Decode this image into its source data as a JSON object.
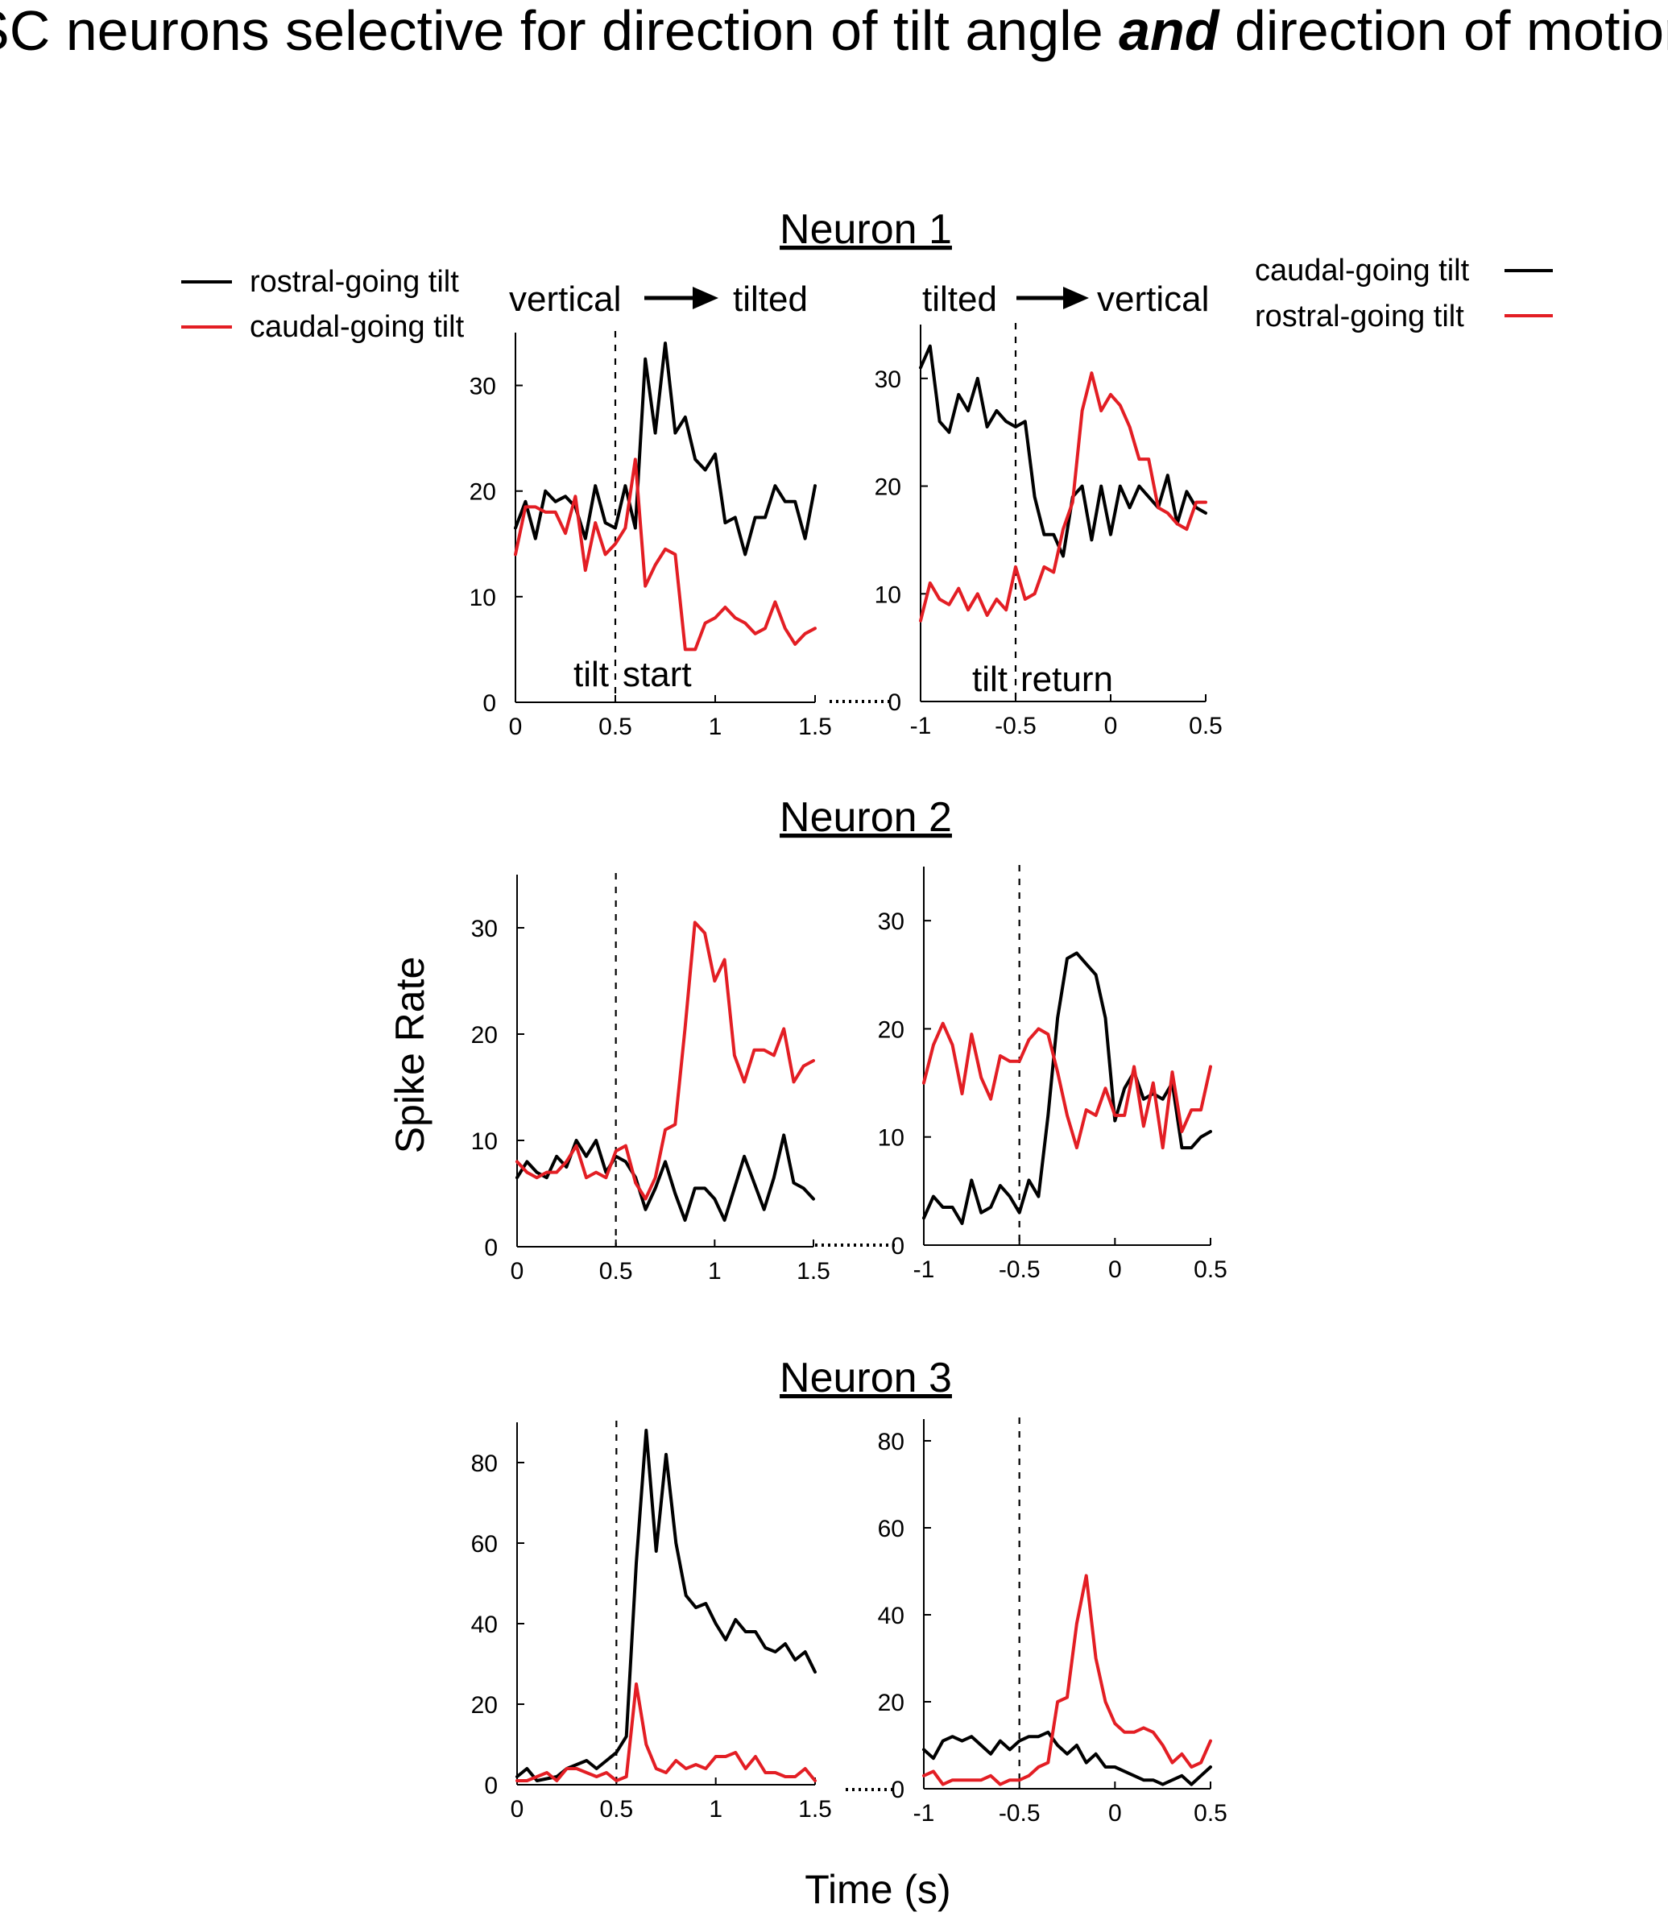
{
  "title": {
    "part1": "SC neurons selective for direction of tilt angle ",
    "emphasis": "and",
    "part2": " direction of motion"
  },
  "annotations": {
    "onset_from": "vertical",
    "onset_to": "tilted",
    "offset_from": "tilted",
    "offset_to": "vertical",
    "tilt_start_1": "tilt",
    "tilt_start_2": "start",
    "tilt_return_1": "tilt",
    "tilt_return_2": "return"
  },
  "legend_left": {
    "items": [
      {
        "label": "rostral-going tilt",
        "color": "#000000"
      },
      {
        "label": "caudal-going tilt",
        "color": "#e31e24"
      }
    ]
  },
  "legend_right": {
    "items": [
      {
        "label": "caudal-going tilt",
        "color": "#000000"
      },
      {
        "label": "rostral-going tilt",
        "color": "#e31e24"
      }
    ]
  },
  "ylabel": "Spike Rate",
  "xlabel": "Time (s)",
  "chart_data": [
    {
      "type": "line",
      "title": "Neuron 1",
      "panel": "left",
      "series_note": "black = rostral-going tilt, red = caudal-going tilt",
      "xlim": [
        0,
        1.5
      ],
      "ylim": [
        0,
        35
      ],
      "xticks": [
        0,
        0.5,
        1,
        1.5
      ],
      "yticks": [
        0,
        10,
        20,
        30
      ],
      "xtick_labels": [
        "0",
        "0.5",
        "1",
        "1.5"
      ],
      "ytick_labels": [
        "0",
        "10",
        "20",
        "30"
      ],
      "vline": 0.5,
      "series": [
        {
          "color": "#000000",
          "x": [
            0,
            0.05,
            0.1,
            0.15,
            0.2,
            0.25,
            0.3,
            0.35,
            0.4,
            0.45,
            0.5,
            0.55,
            0.6,
            0.65,
            0.7,
            0.75,
            0.8,
            0.85,
            0.9,
            0.95,
            1.0,
            1.05,
            1.1,
            1.15,
            1.2,
            1.25,
            1.3,
            1.35,
            1.4,
            1.45,
            1.5
          ],
          "y": [
            16.5,
            19,
            15.5,
            20,
            19,
            19.5,
            18.5,
            15.5,
            20.5,
            17,
            16.5,
            20.5,
            16.5,
            32.5,
            25.5,
            34,
            25.5,
            27,
            23,
            22,
            23.5,
            17,
            17.5,
            14,
            17.5,
            17.5,
            20.5,
            19,
            19,
            15.5,
            20.5
          ]
        },
        {
          "color": "#e31e24",
          "x": [
            0,
            0.05,
            0.1,
            0.15,
            0.2,
            0.25,
            0.3,
            0.35,
            0.4,
            0.45,
            0.5,
            0.55,
            0.6,
            0.65,
            0.7,
            0.75,
            0.8,
            0.85,
            0.9,
            0.95,
            1.0,
            1.05,
            1.1,
            1.15,
            1.2,
            1.25,
            1.3,
            1.35,
            1.4,
            1.45,
            1.5
          ],
          "y": [
            14,
            18.5,
            18.5,
            18,
            18,
            16,
            19.5,
            12.5,
            17,
            14,
            15,
            16.5,
            23,
            11,
            13,
            14.5,
            14,
            5,
            5,
            7.5,
            8,
            9,
            8,
            7.5,
            6.5,
            7,
            9.5,
            7,
            5.5,
            6.5,
            7
          ]
        }
      ]
    },
    {
      "type": "line",
      "title": "",
      "panel": "right",
      "series_note": "black = caudal-going tilt, red = rostral-going tilt",
      "xlim": [
        -1,
        0.5
      ],
      "ylim": [
        0,
        35
      ],
      "xticks": [
        -1,
        -0.5,
        0,
        0.5
      ],
      "yticks": [
        0,
        10,
        20,
        30
      ],
      "xtick_labels": [
        "-1",
        "-0.5",
        "0",
        "0.5"
      ],
      "ytick_labels": [
        "0",
        "10",
        "20",
        "30"
      ],
      "vline": -0.5,
      "series": [
        {
          "color": "#000000",
          "x": [
            -1,
            -0.95,
            -0.9,
            -0.85,
            -0.8,
            -0.75,
            -0.7,
            -0.65,
            -0.6,
            -0.55,
            -0.5,
            -0.45,
            -0.4,
            -0.35,
            -0.3,
            -0.25,
            -0.2,
            -0.15,
            -0.1,
            -0.05,
            0,
            0.05,
            0.1,
            0.15,
            0.2,
            0.25,
            0.3,
            0.35,
            0.4,
            0.45,
            0.5
          ],
          "y": [
            31,
            33,
            26,
            25,
            28.5,
            27,
            30,
            25.5,
            27,
            26,
            25.5,
            26,
            19,
            15.5,
            15.5,
            13.5,
            19,
            20,
            15,
            20,
            15.5,
            20,
            18,
            20,
            19,
            18,
            21,
            16.5,
            19.5,
            18,
            17.5
          ]
        },
        {
          "color": "#e31e24",
          "x": [
            -1,
            -0.95,
            -0.9,
            -0.85,
            -0.8,
            -0.75,
            -0.7,
            -0.65,
            -0.6,
            -0.55,
            -0.5,
            -0.45,
            -0.4,
            -0.35,
            -0.3,
            -0.25,
            -0.2,
            -0.15,
            -0.1,
            -0.05,
            0,
            0.05,
            0.1,
            0.15,
            0.2,
            0.25,
            0.3,
            0.35,
            0.4,
            0.45,
            0.5
          ],
          "y": [
            7.5,
            11,
            9.5,
            9,
            10.5,
            8.5,
            10,
            8,
            9.5,
            8.5,
            12.5,
            9.5,
            10,
            12.5,
            12,
            16,
            18.5,
            27,
            30.5,
            27,
            28.5,
            27.5,
            25.5,
            22.5,
            22.5,
            18,
            17.5,
            16.5,
            16,
            18.5,
            18.5
          ]
        }
      ]
    },
    {
      "type": "line",
      "title": "Neuron 2",
      "panel": "left",
      "xlim": [
        0,
        1.5
      ],
      "ylim": [
        0,
        35
      ],
      "xticks": [
        0,
        0.5,
        1,
        1.5
      ],
      "yticks": [
        0,
        10,
        20,
        30
      ],
      "xtick_labels": [
        "0",
        "0.5",
        "1",
        "1.5"
      ],
      "ytick_labels": [
        "0",
        "10",
        "20",
        "30"
      ],
      "vline": 0.5,
      "series": [
        {
          "color": "#000000",
          "x": [
            0,
            0.05,
            0.1,
            0.15,
            0.2,
            0.25,
            0.3,
            0.35,
            0.4,
            0.45,
            0.5,
            0.55,
            0.6,
            0.65,
            0.7,
            0.75,
            0.8,
            0.85,
            0.9,
            0.95,
            1.0,
            1.05,
            1.1,
            1.15,
            1.2,
            1.25,
            1.3,
            1.35,
            1.4,
            1.45,
            1.5
          ],
          "y": [
            6.5,
            8,
            7,
            6.5,
            8.5,
            7.5,
            10,
            8.5,
            10,
            7,
            8.5,
            8,
            6.5,
            3.5,
            5.5,
            8,
            5,
            2.5,
            5.5,
            5.5,
            4.5,
            2.5,
            5.5,
            8.5,
            6,
            3.5,
            6.5,
            10.5,
            6,
            5.5,
            4.5
          ]
        },
        {
          "color": "#e31e24",
          "x": [
            0,
            0.05,
            0.1,
            0.15,
            0.2,
            0.25,
            0.3,
            0.35,
            0.4,
            0.45,
            0.5,
            0.55,
            0.6,
            0.65,
            0.7,
            0.75,
            0.8,
            0.85,
            0.9,
            0.95,
            1.0,
            1.05,
            1.1,
            1.15,
            1.2,
            1.25,
            1.3,
            1.35,
            1.4,
            1.45,
            1.5
          ],
          "y": [
            8,
            7,
            6.5,
            7,
            7,
            8,
            9.5,
            6.5,
            7,
            6.5,
            9,
            9.5,
            6,
            4.5,
            6.5,
            11,
            11.5,
            20.5,
            30.5,
            29.5,
            25,
            27,
            18,
            15.5,
            18.5,
            18.5,
            18,
            20.5,
            15.5,
            17,
            17.5
          ]
        }
      ]
    },
    {
      "type": "line",
      "title": "",
      "panel": "right",
      "xlim": [
        -1,
        0.5
      ],
      "ylim": [
        0,
        35
      ],
      "xticks": [
        -1,
        -0.5,
        0,
        0.5
      ],
      "yticks": [
        0,
        10,
        20,
        30
      ],
      "xtick_labels": [
        "-1",
        "-0.5",
        "0",
        "0.5"
      ],
      "ytick_labels": [
        "0",
        "10",
        "20",
        "30"
      ],
      "vline": -0.5,
      "series": [
        {
          "color": "#000000",
          "x": [
            -1,
            -0.95,
            -0.9,
            -0.85,
            -0.8,
            -0.75,
            -0.7,
            -0.65,
            -0.6,
            -0.55,
            -0.5,
            -0.45,
            -0.4,
            -0.35,
            -0.3,
            -0.25,
            -0.2,
            -0.15,
            -0.1,
            -0.05,
            0,
            0.05,
            0.1,
            0.15,
            0.2,
            0.25,
            0.3,
            0.35,
            0.4,
            0.45,
            0.5
          ],
          "y": [
            2.5,
            4.5,
            3.5,
            3.5,
            2,
            6,
            3,
            3.5,
            5.5,
            4.5,
            3,
            6,
            4.5,
            12,
            21,
            26.5,
            27,
            26,
            25,
            21,
            11.5,
            14.5,
            16,
            13.5,
            14,
            13.5,
            15,
            9,
            9,
            10,
            10.5
          ]
        },
        {
          "color": "#e31e24",
          "x": [
            -1,
            -0.95,
            -0.9,
            -0.85,
            -0.8,
            -0.75,
            -0.7,
            -0.65,
            -0.6,
            -0.55,
            -0.5,
            -0.45,
            -0.4,
            -0.35,
            -0.3,
            -0.25,
            -0.2,
            -0.15,
            -0.1,
            -0.05,
            0,
            0.05,
            0.1,
            0.15,
            0.2,
            0.25,
            0.3,
            0.35,
            0.4,
            0.45,
            0.5
          ],
          "y": [
            15,
            18.5,
            20.5,
            18.5,
            14,
            19.5,
            15.5,
            13.5,
            17.5,
            17,
            17,
            19,
            20,
            19.5,
            16,
            12,
            9,
            12.5,
            12,
            14.5,
            12,
            12,
            16.5,
            11,
            15,
            9,
            16,
            10.5,
            12.5,
            12.5,
            16.5
          ]
        }
      ]
    },
    {
      "type": "line",
      "title": "Neuron 3",
      "panel": "left",
      "xlim": [
        0,
        1.5
      ],
      "ylim": [
        0,
        90
      ],
      "xticks": [
        0,
        0.5,
        1,
        1.5
      ],
      "yticks": [
        0,
        20,
        40,
        60,
        80
      ],
      "xtick_labels": [
        "0",
        "0.5",
        "1",
        "1.5"
      ],
      "ytick_labels": [
        "0",
        "20",
        "40",
        "60",
        "80"
      ],
      "vline": 0.5,
      "series": [
        {
          "color": "#000000",
          "x": [
            0,
            0.05,
            0.1,
            0.15,
            0.2,
            0.25,
            0.3,
            0.35,
            0.4,
            0.45,
            0.5,
            0.55,
            0.6,
            0.65,
            0.7,
            0.75,
            0.8,
            0.85,
            0.9,
            0.95,
            1.0,
            1.05,
            1.1,
            1.15,
            1.2,
            1.25,
            1.3,
            1.35,
            1.4,
            1.45,
            1.5
          ],
          "y": [
            2,
            4,
            1,
            1.5,
            2,
            4,
            5,
            6,
            4,
            6,
            8,
            12,
            55,
            88,
            58,
            82,
            60,
            47,
            44,
            45,
            40,
            36,
            41,
            38,
            38,
            34,
            33,
            35,
            31,
            33,
            28
          ]
        },
        {
          "color": "#e31e24",
          "x": [
            0,
            0.05,
            0.1,
            0.15,
            0.2,
            0.25,
            0.3,
            0.35,
            0.4,
            0.45,
            0.5,
            0.55,
            0.6,
            0.65,
            0.7,
            0.75,
            0.8,
            0.85,
            0.9,
            0.95,
            1.0,
            1.05,
            1.1,
            1.15,
            1.2,
            1.25,
            1.3,
            1.35,
            1.4,
            1.45,
            1.5
          ],
          "y": [
            1,
            1,
            2,
            3,
            1,
            4,
            4,
            3,
            2,
            3,
            1,
            2,
            25,
            10,
            4,
            3,
            6,
            4,
            5,
            4,
            7,
            7,
            8,
            4,
            7,
            3,
            3,
            2,
            2,
            4,
            1
          ]
        }
      ]
    },
    {
      "type": "line",
      "title": "",
      "panel": "right",
      "xlim": [
        -1,
        0.5
      ],
      "ylim": [
        0,
        85
      ],
      "xticks": [
        -1,
        -0.5,
        0,
        0.5
      ],
      "yticks": [
        0,
        20,
        40,
        60,
        80
      ],
      "xtick_labels": [
        "-1",
        "-0.5",
        "0",
        "0.5"
      ],
      "ytick_labels": [
        "0",
        "20",
        "40",
        "60",
        "80"
      ],
      "vline": -0.5,
      "series": [
        {
          "color": "#000000",
          "x": [
            -1,
            -0.95,
            -0.9,
            -0.85,
            -0.8,
            -0.75,
            -0.7,
            -0.65,
            -0.6,
            -0.55,
            -0.5,
            -0.45,
            -0.4,
            -0.35,
            -0.3,
            -0.25,
            -0.2,
            -0.15,
            -0.1,
            -0.05,
            0,
            0.05,
            0.1,
            0.15,
            0.2,
            0.25,
            0.3,
            0.35,
            0.4,
            0.45,
            0.5
          ],
          "y": [
            9,
            7,
            11,
            12,
            11,
            12,
            10,
            8,
            11,
            9,
            11,
            12,
            12,
            13,
            10,
            8,
            10,
            6,
            8,
            5,
            5,
            4,
            3,
            2,
            2,
            1,
            2,
            3,
            1,
            3,
            5
          ]
        },
        {
          "color": "#e31e24",
          "x": [
            -1,
            -0.95,
            -0.9,
            -0.85,
            -0.8,
            -0.75,
            -0.7,
            -0.65,
            -0.6,
            -0.55,
            -0.5,
            -0.45,
            -0.4,
            -0.35,
            -0.3,
            -0.25,
            -0.2,
            -0.15,
            -0.1,
            -0.05,
            0,
            0.05,
            0.1,
            0.15,
            0.2,
            0.25,
            0.3,
            0.35,
            0.4,
            0.45,
            0.5
          ],
          "y": [
            3,
            4,
            1,
            2,
            2,
            2,
            2,
            3,
            1,
            2,
            2,
            3,
            5,
            6,
            20,
            21,
            38,
            49,
            30,
            20,
            15,
            13,
            13,
            14,
            13,
            10,
            6,
            8,
            5,
            6,
            11
          ]
        }
      ]
    }
  ]
}
